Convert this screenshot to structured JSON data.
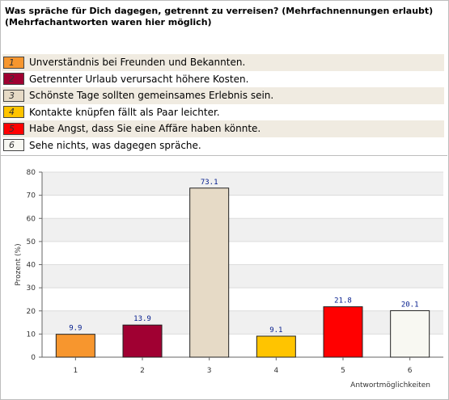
{
  "question": "Was spräche für Dich dagegen, getrennt zu verreisen? (Mehrfachnennungen erlaubt)",
  "note": "(Mehrfachantworten waren hier möglich)",
  "legend": [
    {
      "num": "1",
      "text": "Unverständnis bei Freunden und Bekannten.",
      "color": "#f7962e"
    },
    {
      "num": "2",
      "text": "Getrennter Urlaub verursacht höhere Kosten.",
      "color": "#a00032"
    },
    {
      "num": "3",
      "text": "Schönste Tage sollten gemeinsames Erlebnis sein.",
      "color": "#e6dac6"
    },
    {
      "num": "4",
      "text": "Kontakte knüpfen fällt als Paar leichter.",
      "color": "#ffc400"
    },
    {
      "num": "5",
      "text": "Habe Angst, dass Sie eine Affäre haben könnte.",
      "color": "#ff0000"
    },
    {
      "num": "6",
      "text": "Sehe nichts, was dagegen spräche.",
      "color": "#f8f8f2"
    }
  ],
  "chart_data": {
    "type": "bar",
    "categories": [
      "1",
      "2",
      "3",
      "4",
      "5",
      "6"
    ],
    "values": [
      9.9,
      13.9,
      73.1,
      9.1,
      21.8,
      20.1
    ],
    "labels": [
      "9.9",
      "13.9",
      "73.1",
      "9.1",
      "21.8",
      "20.1"
    ],
    "colors": [
      "#f7962e",
      "#a00032",
      "#e6dac6",
      "#ffc400",
      "#ff0000",
      "#f8f8f2"
    ],
    "ylabel": "Prozent (%)",
    "xlabel": "Antwortmöglichkeiten",
    "ylim": [
      0,
      80
    ],
    "yticks": [
      0,
      10,
      20,
      30,
      40,
      50,
      60,
      70,
      80
    ],
    "grid": true,
    "band_color": "#f0f0f0"
  }
}
